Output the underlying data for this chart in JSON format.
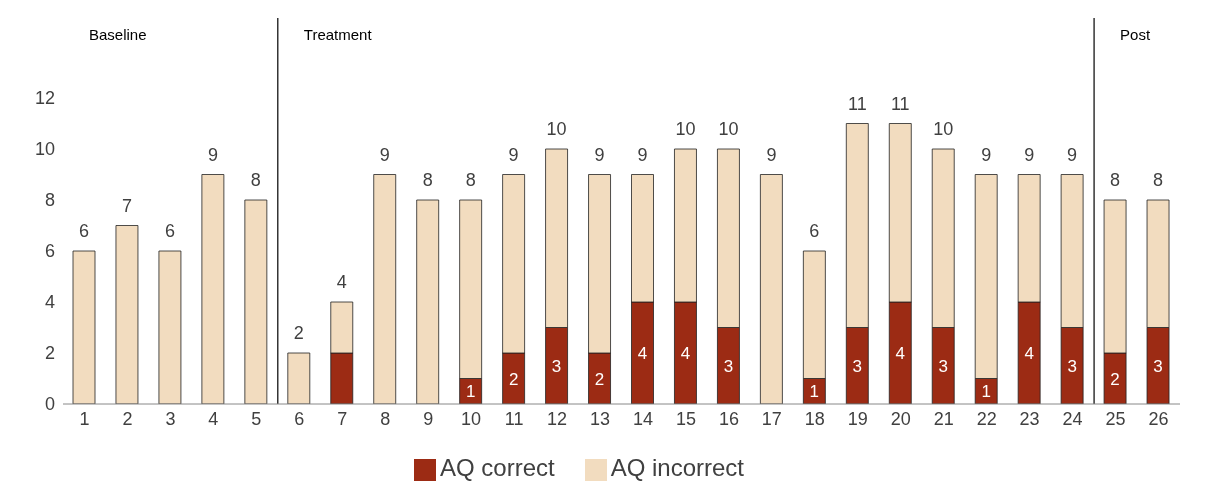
{
  "chart_data": {
    "type": "bar",
    "stacked": true,
    "x": [
      1,
      2,
      3,
      4,
      5,
      6,
      7,
      8,
      9,
      10,
      11,
      12,
      13,
      14,
      15,
      16,
      17,
      18,
      19,
      20,
      21,
      22,
      23,
      24,
      25,
      26
    ],
    "xlim": [
      0.5,
      26.5
    ],
    "xticks": [
      1,
      2,
      3,
      4,
      5,
      6,
      7,
      8,
      9,
      10,
      11,
      12,
      13,
      14,
      15,
      16,
      17,
      18,
      19,
      20,
      21,
      22,
      23,
      24,
      25,
      26
    ],
    "series": [
      {
        "name": "AQ correct",
        "color": "#9c2b14",
        "values": [
          0,
          0,
          0,
          0,
          0,
          0,
          2,
          0,
          0,
          1,
          2,
          3,
          2,
          4,
          4,
          3,
          0,
          1,
          3,
          4,
          3,
          1,
          4,
          3,
          2,
          3
        ],
        "value_labels": [
          null,
          null,
          null,
          null,
          null,
          null,
          null,
          null,
          null,
          "1",
          "2",
          "3",
          "2",
          "4",
          "4",
          "3",
          null,
          "1",
          "3",
          "4",
          "3",
          "1",
          "4",
          "3",
          "2",
          "3"
        ]
      },
      {
        "name": "AQ incorrect",
        "color": "#f2dcbf",
        "values": [
          6,
          7,
          6,
          9,
          8,
          2,
          2,
          9,
          8,
          7,
          7,
          7,
          7,
          5,
          6,
          7,
          9,
          5,
          8,
          7,
          7,
          8,
          5,
          6,
          6,
          5
        ]
      }
    ],
    "totals": [
      "6",
      "7",
      "6",
      "9",
      "8",
      "2",
      "4",
      "9",
      "8",
      "8",
      "9",
      "10",
      "9",
      "9",
      "10",
      "10",
      "9",
      "6",
      "11",
      "11",
      "10",
      "9",
      "9",
      "9",
      "8",
      "8"
    ],
    "ref_lines": [
      {
        "axis": "x",
        "value": 5.5,
        "color": "#000000"
      },
      {
        "axis": "x",
        "value": 24.5,
        "color": "#000000"
      }
    ],
    "annotations": [
      "Baseline",
      "Treatment",
      "Post"
    ],
    "ylim": [
      0,
      12
    ],
    "yticks": [
      0,
      2,
      4,
      6,
      8,
      10,
      12
    ],
    "grid": false,
    "legend": "bottom"
  }
}
